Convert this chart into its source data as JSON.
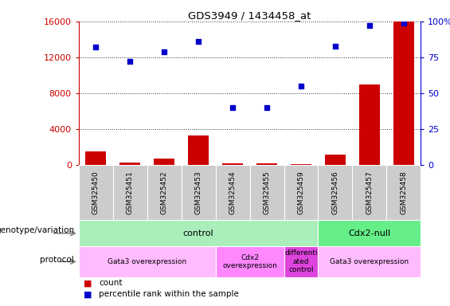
{
  "title": "GDS3949 / 1434458_at",
  "samples": [
    "GSM325450",
    "GSM325451",
    "GSM325452",
    "GSM325453",
    "GSM325454",
    "GSM325455",
    "GSM325459",
    "GSM325456",
    "GSM325457",
    "GSM325458"
  ],
  "counts": [
    1500,
    300,
    700,
    3300,
    200,
    250,
    150,
    1200,
    9000,
    16000
  ],
  "percentiles": [
    82,
    72,
    79,
    86,
    40,
    40,
    55,
    83,
    97,
    99
  ],
  "ylim_left": [
    0,
    16000
  ],
  "yticks_left": [
    0,
    4000,
    8000,
    12000,
    16000
  ],
  "yticks_right": [
    0,
    25,
    50,
    75,
    100
  ],
  "bar_color": "#cc0000",
  "scatter_color": "#0000cc",
  "genotype_groups": [
    {
      "label": "control",
      "start": 0,
      "end": 7,
      "color": "#aaeebb"
    },
    {
      "label": "Cdx2-null",
      "start": 7,
      "end": 10,
      "color": "#66ee88"
    }
  ],
  "protocol_groups": [
    {
      "label": "Gata3 overexpression",
      "start": 0,
      "end": 4,
      "color": "#ffbbff"
    },
    {
      "label": "Cdx2\noverexpression",
      "start": 4,
      "end": 6,
      "color": "#ff88ff"
    },
    {
      "label": "differenti\nated\ncontrol",
      "start": 6,
      "end": 7,
      "color": "#dd44dd"
    },
    {
      "label": "Gata3 overexpression",
      "start": 7,
      "end": 10,
      "color": "#ffbbff"
    }
  ],
  "left_axis_color": "#cc0000",
  "right_axis_color": "#0000cc",
  "bg_color": "#ffffff",
  "label_bg_color": "#cccccc",
  "grid_color": "#333333"
}
